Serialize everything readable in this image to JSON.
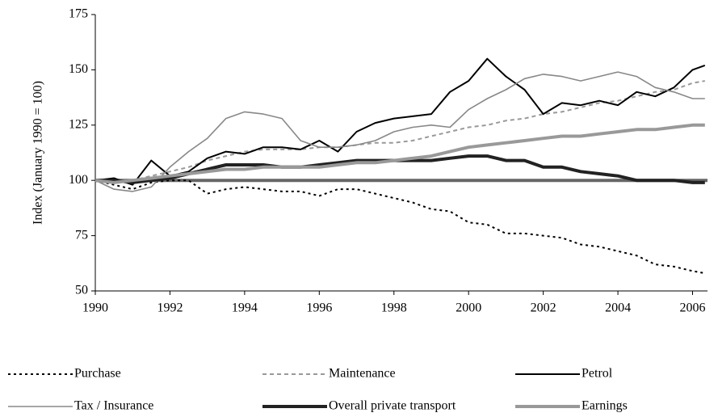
{
  "chart_data": {
    "type": "line",
    "ylabel": "Index (January 1990 = 100)",
    "x": [
      1990,
      1990.5,
      1991,
      1991.5,
      1992,
      1992.5,
      1993,
      1993.5,
      1994,
      1994.5,
      1995,
      1995.5,
      1996,
      1996.5,
      1997,
      1997.5,
      1998,
      1998.5,
      1999,
      1999.5,
      2000,
      2000.5,
      2001,
      2001.5,
      2002,
      2002.5,
      2003,
      2003.5,
      2004,
      2004.5,
      2005,
      2005.5,
      2006,
      2006.33
    ],
    "xlim": [
      1990,
      2006.4
    ],
    "xticks": [
      1990,
      1992,
      1994,
      1996,
      1998,
      2000,
      2002,
      2004,
      2006
    ],
    "ylim": [
      50,
      175
    ],
    "yticks": [
      50,
      75,
      100,
      125,
      150,
      175
    ],
    "baseline": {
      "value": 100,
      "color": "#666666",
      "width": 4
    },
    "series": [
      {
        "name": "Purchase",
        "color": "#000000",
        "width": 2,
        "dash": "3,4",
        "values": [
          100,
          98,
          96,
          99,
          100,
          100,
          94,
          96,
          97,
          96,
          95,
          95,
          93,
          96,
          96,
          94,
          92,
          90,
          87,
          86,
          81,
          80,
          76,
          76,
          75,
          74,
          71,
          70,
          68,
          66,
          62,
          61,
          59,
          58
        ]
      },
      {
        "name": "Maintenance",
        "color": "#999999",
        "width": 2,
        "dash": "5,4",
        "values": [
          100,
          100,
          100,
          102,
          104,
          106,
          109,
          111,
          113,
          114,
          114,
          114,
          115,
          115,
          116,
          117,
          117,
          118,
          120,
          122,
          124,
          125,
          127,
          128,
          130,
          131,
          133,
          135,
          136,
          138,
          140,
          141,
          144,
          145
        ]
      },
      {
        "name": "Petrol",
        "color": "#000000",
        "width": 2,
        "dash": "",
        "values": [
          100,
          101,
          98,
          109,
          102,
          104,
          110,
          113,
          112,
          115,
          115,
          114,
          118,
          113,
          122,
          126,
          128,
          129,
          130,
          140,
          145,
          155,
          147,
          141,
          130,
          135,
          134,
          136,
          134,
          140,
          138,
          142,
          150,
          152
        ]
      },
      {
        "name": "Tax / Insurance",
        "color": "#888888",
        "width": 1.6,
        "dash": "",
        "values": [
          100,
          96,
          95,
          97,
          106,
          113,
          119,
          128,
          131,
          130,
          128,
          118,
          115,
          115,
          116,
          118,
          122,
          124,
          125,
          124,
          132,
          137,
          141,
          146,
          148,
          147,
          145,
          147,
          149,
          147,
          142,
          140,
          137,
          137
        ]
      },
      {
        "name": "Overall private transport",
        "color": "#222222",
        "width": 4,
        "dash": "",
        "values": [
          100,
          100,
          99,
          100,
          101,
          103,
          105,
          107,
          107,
          107,
          106,
          106,
          107,
          108,
          109,
          109,
          109,
          109,
          109,
          110,
          111,
          111,
          109,
          109,
          106,
          106,
          104,
          103,
          102,
          100,
          100,
          100,
          99,
          99
        ]
      },
      {
        "name": "Earnings",
        "color": "#999999",
        "width": 4,
        "dash": "",
        "values": [
          100,
          99,
          100,
          101,
          102,
          103,
          104,
          105,
          105,
          106,
          106,
          106,
          106,
          107,
          108,
          108,
          109,
          110,
          111,
          113,
          115,
          116,
          117,
          118,
          119,
          120,
          120,
          121,
          122,
          123,
          123,
          124,
          125,
          125
        ]
      }
    ]
  }
}
